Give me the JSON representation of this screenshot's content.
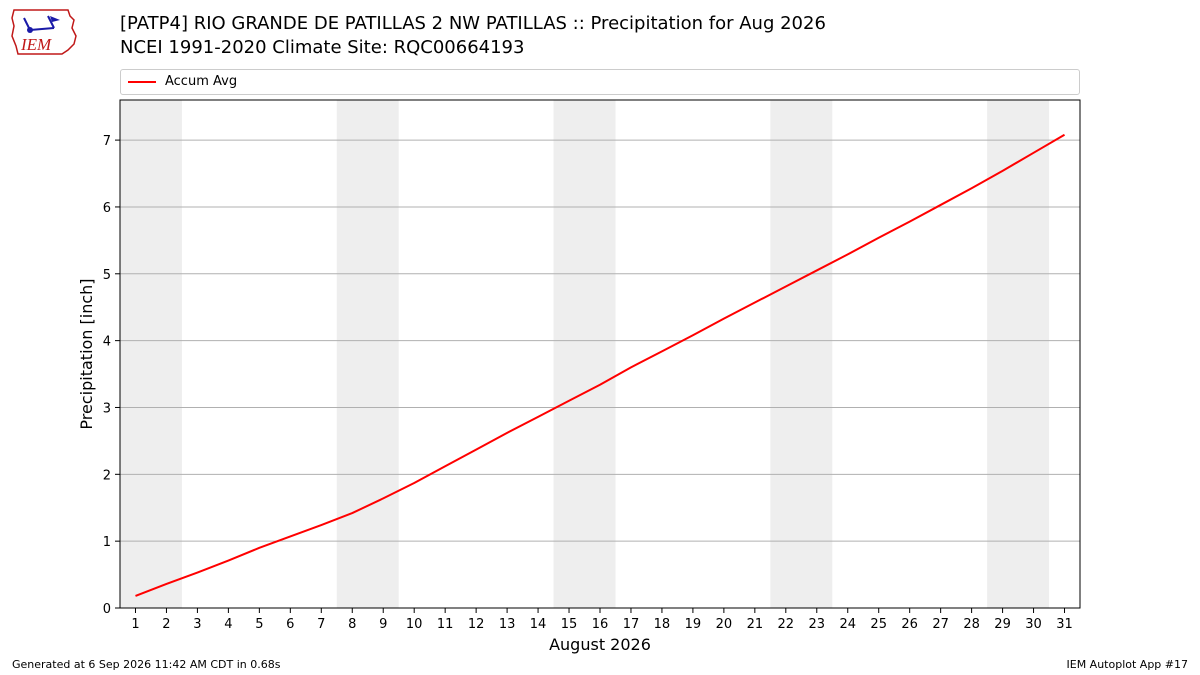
{
  "header": {
    "logo_text": "IEM",
    "title_line1": "[PATP4] RIO GRANDE DE PATILLAS 2 NW PATILLAS :: Precipitation for Aug 2026",
    "title_line2": "NCEI 1991-2020 Climate Site: RQC00664193"
  },
  "footer": {
    "generated": "Generated at 6 Sep 2026 11:42 AM CDT in 0.68s",
    "app": "IEM Autoplot App #17"
  },
  "colors": {
    "line": "#ff0000",
    "weekend_band": "#eeeeee",
    "grid": "#b0b0b0"
  },
  "chart_data": {
    "type": "line",
    "title": "",
    "xlabel": "August 2026",
    "ylabel": "Precipitation [inch]",
    "legend": "top, full width",
    "grid": "horizontal",
    "xlim": [
      0.5,
      31.5
    ],
    "ylim": [
      0,
      7.6
    ],
    "x_ticks": [
      1,
      2,
      3,
      4,
      5,
      6,
      7,
      8,
      9,
      10,
      11,
      12,
      13,
      14,
      15,
      16,
      17,
      18,
      19,
      20,
      21,
      22,
      23,
      24,
      25,
      26,
      27,
      28,
      29,
      30,
      31
    ],
    "y_ticks": [
      0,
      1,
      2,
      3,
      4,
      5,
      6,
      7
    ],
    "shaded_day_ranges": [
      [
        1,
        2
      ],
      [
        8,
        9
      ],
      [
        15,
        16
      ],
      [
        22,
        23
      ],
      [
        29,
        30
      ]
    ],
    "x": [
      1,
      2,
      3,
      4,
      5,
      6,
      7,
      8,
      9,
      10,
      11,
      12,
      13,
      14,
      15,
      16,
      17,
      18,
      19,
      20,
      21,
      22,
      23,
      24,
      25,
      26,
      27,
      28,
      29,
      30,
      31
    ],
    "series": [
      {
        "name": "Accum Avg",
        "values": [
          0.18,
          0.36,
          0.53,
          0.71,
          0.9,
          1.07,
          1.24,
          1.42,
          1.64,
          1.87,
          2.12,
          2.37,
          2.62,
          2.86,
          3.1,
          3.34,
          3.6,
          3.84,
          4.08,
          4.33,
          4.57,
          4.81,
          5.05,
          5.29,
          5.54,
          5.78,
          6.03,
          6.28,
          6.54,
          6.81,
          7.08
        ]
      }
    ]
  }
}
